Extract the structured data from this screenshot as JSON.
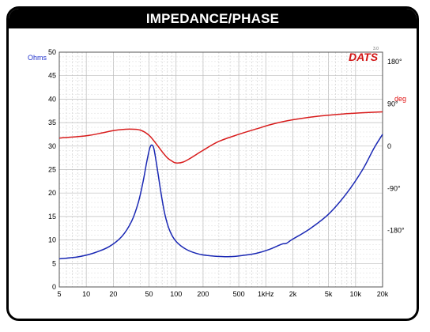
{
  "window": {
    "title": "IMPEDANCE/PHASE"
  },
  "brand": {
    "logo": "DATS",
    "logo_superscript": "3.0"
  },
  "colors": {
    "impedance": "#1a28b4",
    "phase": "#d81c1c",
    "grid": "#c8c8c8",
    "ohms_label": "#2233cc",
    "deg_label": "#e01010",
    "logo": "#d21414"
  },
  "chart_data": {
    "type": "line",
    "title": "IMPEDANCE/PHASE",
    "x_scale": "log",
    "xlim": [
      5,
      20000
    ],
    "x_ticks": [
      {
        "value": 5,
        "label": "5"
      },
      {
        "value": 10,
        "label": "10"
      },
      {
        "value": 20,
        "label": "20"
      },
      {
        "value": 50,
        "label": "50"
      },
      {
        "value": 100,
        "label": "100"
      },
      {
        "value": 200,
        "label": "200"
      },
      {
        "value": 500,
        "label": "500"
      },
      {
        "value": 1000,
        "label": "1kHz"
      },
      {
        "value": 2000,
        "label": "2k"
      },
      {
        "value": 5000,
        "label": "5k"
      },
      {
        "value": 10000,
        "label": "10k"
      },
      {
        "value": 20000,
        "label": "20k"
      }
    ],
    "y_left": {
      "label": "Ohms",
      "ylim": [
        0,
        50
      ],
      "ticks": [
        "0",
        "5",
        "10",
        "15",
        "20",
        "25",
        "30",
        "35",
        "40",
        "45",
        "50"
      ]
    },
    "y_right": {
      "label": "deg",
      "ylim": [
        -300,
        200
      ],
      "ticks": [
        {
          "value": 180,
          "label": "180°"
        },
        {
          "value": 90,
          "label": "90°"
        },
        {
          "value": 0,
          "label": "0"
        },
        {
          "value": -90,
          "label": "-90°"
        },
        {
          "value": -180,
          "label": "-180°"
        }
      ]
    },
    "grid": true,
    "series": [
      {
        "axis": "left",
        "color": "#1a28b4",
        "points": [
          [
            5,
            6.0
          ],
          [
            8,
            6.4
          ],
          [
            12,
            7.2
          ],
          [
            18,
            8.6
          ],
          [
            25,
            10.8
          ],
          [
            32,
            14.0
          ],
          [
            38,
            18.0
          ],
          [
            43,
            22.5
          ],
          [
            47,
            26.5
          ],
          [
            51,
            29.6
          ],
          [
            54,
            30.2
          ],
          [
            57,
            29.2
          ],
          [
            62,
            25.0
          ],
          [
            68,
            20.0
          ],
          [
            75,
            15.5
          ],
          [
            85,
            12.0
          ],
          [
            100,
            9.7
          ],
          [
            130,
            8.0
          ],
          [
            180,
            7.0
          ],
          [
            250,
            6.6
          ],
          [
            350,
            6.45
          ],
          [
            450,
            6.5
          ],
          [
            600,
            6.8
          ],
          [
            800,
            7.2
          ],
          [
            1100,
            8.0
          ],
          [
            1500,
            9.1
          ],
          [
            1700,
            9.3
          ],
          [
            2000,
            10.2
          ],
          [
            3000,
            12.2
          ],
          [
            5000,
            15.5
          ],
          [
            8000,
            20.0
          ],
          [
            12000,
            25.0
          ],
          [
            16000,
            29.5
          ],
          [
            20000,
            32.5
          ]
        ]
      },
      {
        "axis": "right",
        "color": "#d81c1c",
        "points": [
          [
            5,
            17
          ],
          [
            10,
            22
          ],
          [
            15,
            28
          ],
          [
            20,
            33
          ],
          [
            30,
            36
          ],
          [
            40,
            34
          ],
          [
            50,
            23
          ],
          [
            60,
            5
          ],
          [
            70,
            -12
          ],
          [
            80,
            -25
          ],
          [
            90,
            -32
          ],
          [
            100,
            -36
          ],
          [
            120,
            -34
          ],
          [
            150,
            -24
          ],
          [
            200,
            -9
          ],
          [
            300,
            10
          ],
          [
            500,
            25
          ],
          [
            800,
            37
          ],
          [
            1200,
            47
          ],
          [
            2000,
            56
          ],
          [
            4000,
            64
          ],
          [
            8000,
            69
          ],
          [
            12000,
            71
          ],
          [
            20000,
            73
          ]
        ]
      }
    ]
  }
}
